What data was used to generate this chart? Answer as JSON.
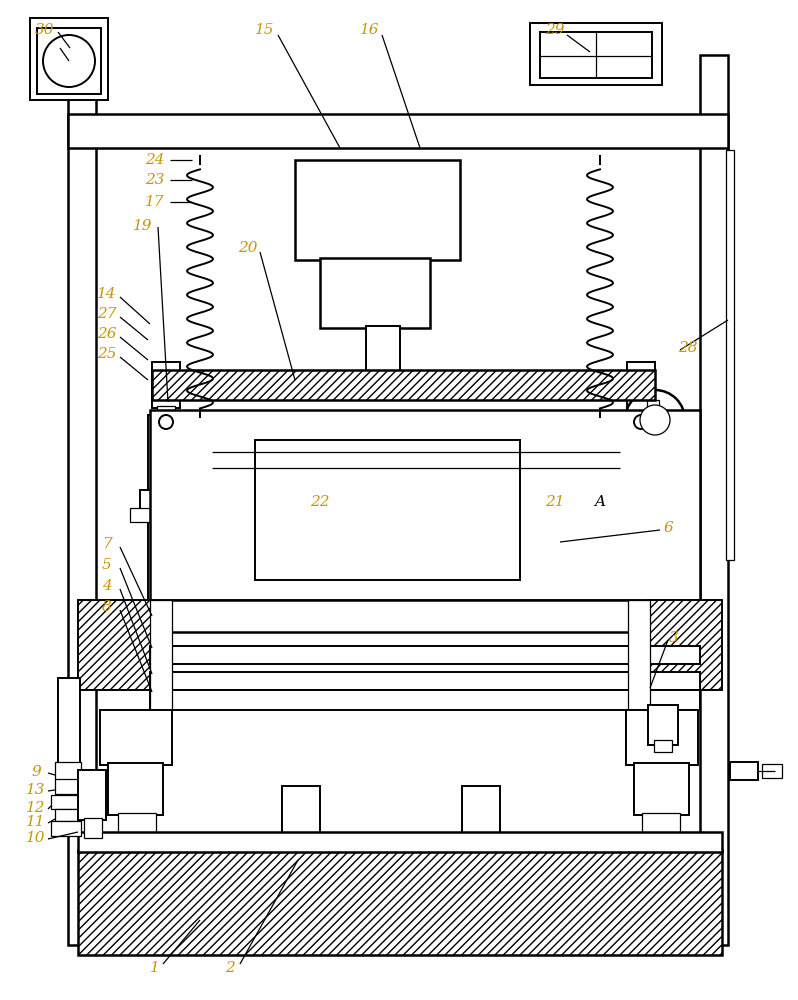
{
  "bg_color": "#ffffff",
  "label_color": "#c8960a",
  "fig_width": 7.98,
  "fig_height": 10.0,
  "dpi": 100
}
